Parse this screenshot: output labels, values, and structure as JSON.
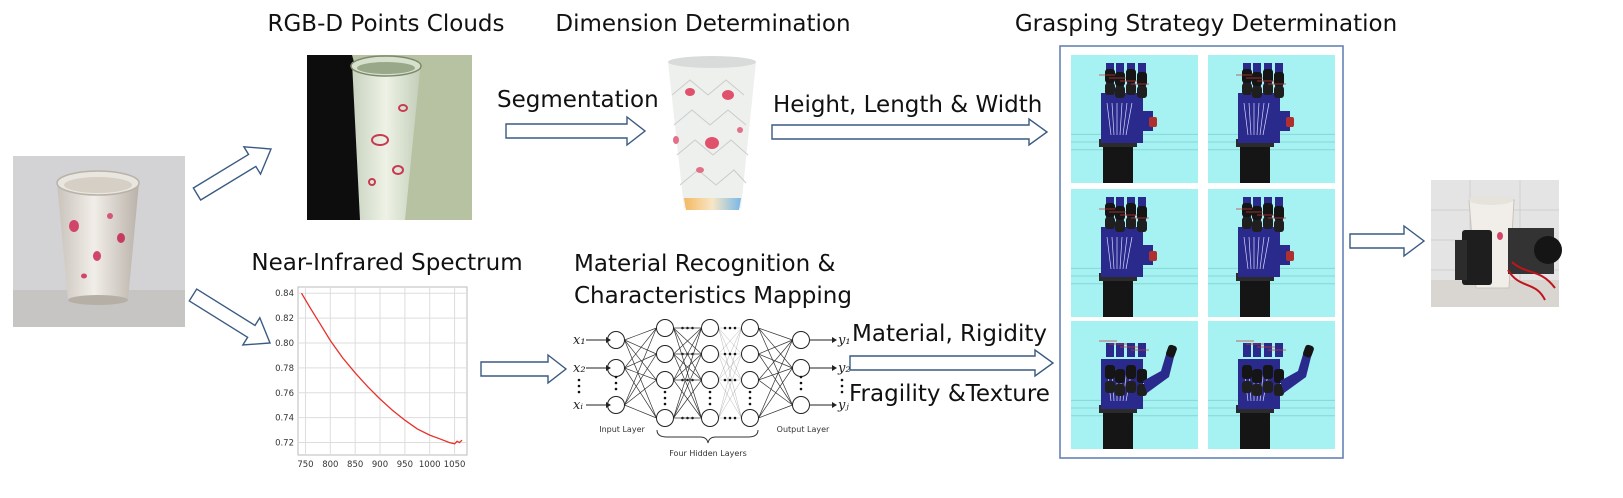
{
  "labels": {
    "rgbd": "RGB-D Points Clouds",
    "dimension": "Dimension Determination",
    "grasping": "Grasping Strategy Determination",
    "segmentation": "Segmentation",
    "hlw": "Height, Length & Width",
    "nir": "Near-Infrared Spectrum",
    "material_line1": "Material Recognition &",
    "material_line2": "Characteristics Mapping",
    "material_rigidity": "Material, Rigidity",
    "fragility_texture": "Fragility &Texture"
  },
  "nn": {
    "input_layer": "Input Layer",
    "hidden_layers": "Four Hidden Layers",
    "output_layer": "Output Layer",
    "x1": "x₁",
    "x2": "x₂",
    "xi": "xᵢ",
    "y1": "y₁",
    "y2": "y₂",
    "yj": "yⱼ"
  },
  "chart_data": {
    "type": "line",
    "title": "",
    "xlabel": "",
    "ylabel": "",
    "xlim": [
      735,
      1075
    ],
    "ylim": [
      0.71,
      0.845
    ],
    "xticks": [
      750,
      800,
      850,
      900,
      950,
      1000,
      1050
    ],
    "yticks": [
      0.72,
      0.74,
      0.76,
      0.78,
      0.8,
      0.82,
      0.84
    ],
    "grid": true,
    "series": [
      {
        "color": "#e8302a",
        "x": [
          742,
          760,
          780,
          800,
          825,
          850,
          875,
          900,
          925,
          950,
          975,
          1000,
          1020,
          1040,
          1050,
          1055,
          1060,
          1065
        ],
        "y": [
          0.84,
          0.828,
          0.815,
          0.802,
          0.788,
          0.776,
          0.765,
          0.755,
          0.746,
          0.738,
          0.731,
          0.726,
          0.723,
          0.72,
          0.719,
          0.721,
          0.72,
          0.722
        ]
      }
    ]
  },
  "colors": {
    "arrow_stroke": "#3a5a82",
    "frame_stroke": "#5b7bb0",
    "panel_bg": "#a6f2f2",
    "hand_blue": "#2a2a8c",
    "hand_black": "#151515",
    "curve": "#e8302a"
  },
  "icons": {
    "arrow": "hollow-block-arrow",
    "cup": "paper-cup-photo",
    "hand": "robotic-hand-render"
  }
}
